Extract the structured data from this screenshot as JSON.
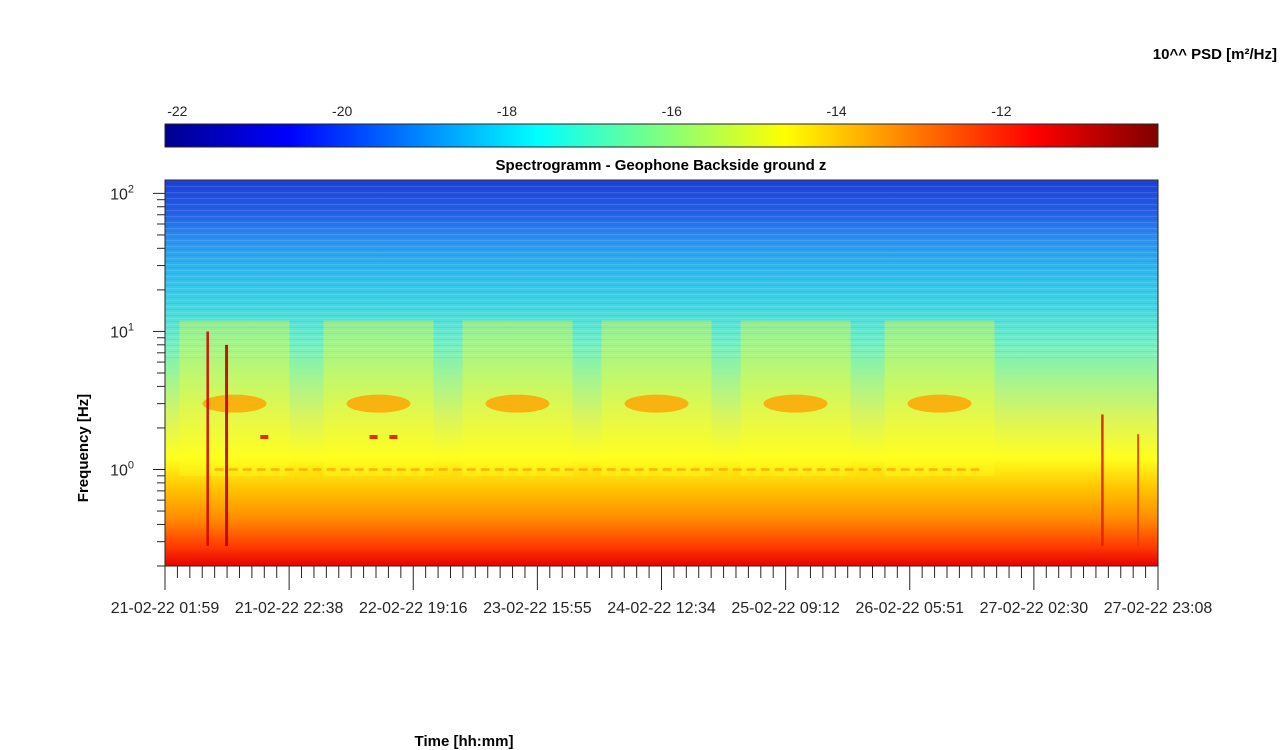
{
  "chart_data": {
    "type": "heatmap",
    "title": "Spectrogramm - Geophone Backside ground z",
    "xlabel": "Time [hh:mm]",
    "ylabel": "Frequency [Hz]",
    "colorbar": {
      "label": "10^^ PSD [m²/Hz]",
      "range": [
        -22.15,
        -10.1
      ],
      "ticks": [
        -22,
        -20,
        -18,
        -16,
        -14,
        -12
      ],
      "tick_labels": [
        "-22",
        "-20",
        "-18",
        "-16",
        "-14",
        "-12"
      ],
      "colormap": "jet",
      "placement": "top"
    },
    "x_ticks": [
      "21-02-22  01:59",
      "21-02-22  22:38",
      "22-02-22  19:16",
      "23-02-22  15:55",
      "24-02-22  12:34",
      "25-02-22  09:12",
      "26-02-22  05:51",
      "27-02-22  02:30",
      "27-02-22  23:08"
    ],
    "y_scale": "log",
    "y_range_hz": [
      0.2,
      125
    ],
    "y_ticks": [
      {
        "base": "10",
        "exp": "0"
      },
      {
        "base": "10",
        "exp": "1"
      },
      {
        "base": "10",
        "exp": "2"
      }
    ],
    "bands": [
      {
        "f_lo": 50,
        "f_hi": 125,
        "log10_psd": -20.3
      },
      {
        "f_lo": 25,
        "f_hi": 50,
        "log10_psd": -19.3
      },
      {
        "f_lo": 12,
        "f_hi": 25,
        "log10_psd": -18.2
      },
      {
        "f_lo": 5,
        "f_hi": 12,
        "log10_psd": -17.3
      },
      {
        "f_lo": 1.2,
        "f_hi": 5,
        "log10_psd": -16.6
      },
      {
        "f_lo": 0.7,
        "f_hi": 1.2,
        "log10_psd": -15.3
      },
      {
        "f_lo": 0.3,
        "f_hi": 0.7,
        "log10_psd": -13.6
      },
      {
        "f_lo": 0.2,
        "f_hi": 0.3,
        "log10_psd": -11.8
      }
    ],
    "daytime_activity_peaks_hz": 3,
    "grid": false
  }
}
